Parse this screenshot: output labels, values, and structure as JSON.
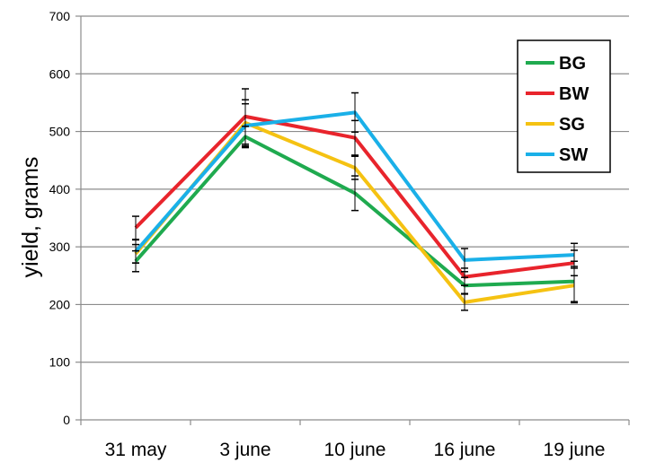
{
  "chart_data": {
    "type": "line",
    "categories": [
      "31 may",
      "3 june",
      "10 june",
      "16 june",
      "19 june"
    ],
    "ylabel": "yield, grams",
    "xlabel": "",
    "ylim": [
      0,
      700
    ],
    "yticks": [
      0,
      100,
      200,
      300,
      400,
      500,
      600,
      700
    ],
    "grid": "horizontal",
    "legend_position": "top-right",
    "series": [
      {
        "name": "BG",
        "color": "#1faa4f",
        "values": [
          275,
          491,
          393,
          233,
          240
        ],
        "err": [
          18,
          18,
          30,
          14,
          35
        ]
      },
      {
        "name": "BW",
        "color": "#e8242c",
        "values": [
          333,
          526,
          489,
          248,
          272
        ],
        "err": [
          20,
          48,
          30,
          15,
          22
        ]
      },
      {
        "name": "SG",
        "color": "#f5c212",
        "values": [
          288,
          515,
          437,
          204,
          233
        ],
        "err": [
          16,
          40,
          20,
          14,
          30
        ]
      },
      {
        "name": "SW",
        "color": "#1ab0e8",
        "values": [
          292,
          510,
          533,
          277,
          286
        ],
        "err": [
          20,
          38,
          34,
          20,
          20
        ]
      }
    ]
  }
}
